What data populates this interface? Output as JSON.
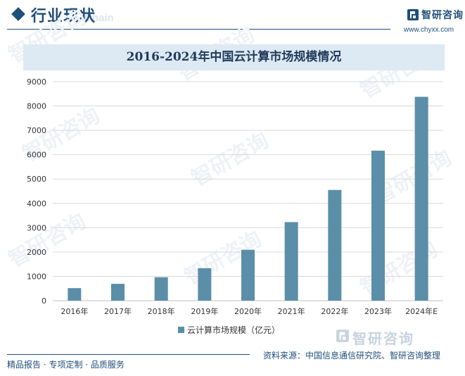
{
  "header": {
    "title": "行业现状",
    "subtitle": "Chain"
  },
  "brand": {
    "name": "智研咨询",
    "url": "www.chyxx.com"
  },
  "chart_data": {
    "type": "bar",
    "title": "2016-2024年中国云计算市场规模情况",
    "categories": [
      "2016年",
      "2017年",
      "2018年",
      "2019年",
      "2020年",
      "2021年",
      "2022年",
      "2023年",
      "2024年E"
    ],
    "series": [
      {
        "name": "云计算市场规模（亿元）",
        "values": [
          515,
          692,
          963,
          1334,
          2091,
          3229,
          4550,
          6165,
          8378
        ]
      }
    ],
    "yticks": [
      0,
      1000,
      2000,
      3000,
      4000,
      5000,
      6000,
      7000,
      8000,
      9000
    ],
    "ylim": [
      0,
      9000
    ],
    "grid": true,
    "legend": "bottom",
    "bar_color": "#5b8ea8"
  },
  "watermark": "智研咨询",
  "footer": {
    "left": "精品报告 · 专项定制 · 品质服务",
    "source": "资料来源：中国信息通信研究院、智研咨询整理",
    "logo_name": "智研咨询"
  }
}
